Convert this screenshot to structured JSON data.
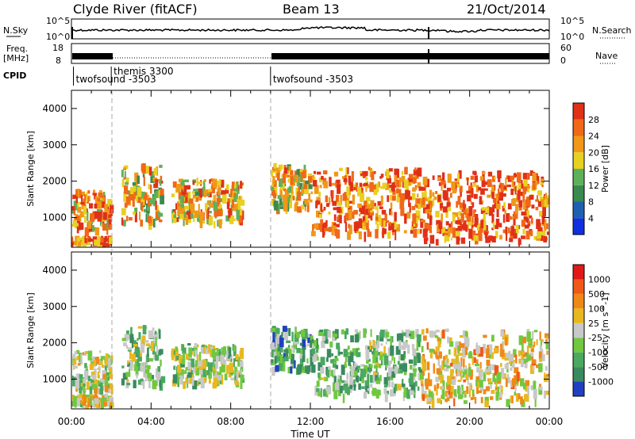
{
  "header": {
    "station": "Clyde River (fitACF)",
    "beam": "Beam 13",
    "date": "21/Oct/2014"
  },
  "left_labels": {
    "nsky": "N.Sky",
    "nsky_ticks": [
      "10^5",
      "10^0"
    ],
    "freq_line1": "Freq.",
    "freq_line2": "[MHz]",
    "freq_ticks": [
      "18",
      "8"
    ],
    "cpid": "CPID"
  },
  "right_labels": {
    "nsearch_ticks": [
      "10^5",
      "10^0"
    ],
    "nsearch": "N.Search",
    "nave_ticks": [
      "60",
      "0"
    ],
    "nave": "Nave"
  },
  "cpid_segments": [
    {
      "label": "twofsound -3503",
      "start_hour": 0.1,
      "level": "low"
    },
    {
      "label": "themis 3300",
      "start_hour": 2.0,
      "level": "high"
    },
    {
      "label": "twofsound -3503",
      "start_hour": 10.0,
      "level": "low"
    }
  ],
  "axes": {
    "xlabel": "Time UT",
    "x_ticks": [
      "00:00",
      "04:00",
      "08:00",
      "12:00",
      "16:00",
      "20:00",
      "00:00"
    ],
    "ylabel": "Slant Range [km]",
    "y_ticks": [
      "1000",
      "2000",
      "3000",
      "4000"
    ]
  },
  "power_colorbar": {
    "label": "Power [dB]",
    "ticks": [
      "4",
      "8",
      "12",
      "16",
      "20",
      "24",
      "28"
    ],
    "colors": [
      "#1030e0",
      "#2060b0",
      "#3a8a50",
      "#5fb05a",
      "#e8d020",
      "#f09818",
      "#f06818",
      "#e03018"
    ]
  },
  "velocity_colorbar": {
    "label": "Velocity [m s^-1]",
    "ticks": [
      "1000",
      "500",
      "100",
      "25",
      "-25",
      "-100",
      "-500",
      "-1000"
    ],
    "colors": [
      "#2040c0",
      "#3a8a60",
      "#4aa860",
      "#70c840",
      "#c8c8c8",
      "#e8b820",
      "#f08818",
      "#f05818",
      "#e01818"
    ]
  },
  "chart_data": [
    {
      "type": "heatmap",
      "title": "",
      "xlabel": "Time UT",
      "ylabel": "Slant Range [km]",
      "xlim": [
        0,
        24
      ],
      "ylim": [
        180,
        4500
      ],
      "colorbar_label": "Power [dB]",
      "colorbar_range": [
        0,
        30
      ],
      "blobs": [
        {
          "t0": 0.0,
          "t1": 2.0,
          "r0": 700,
          "r1": 1800,
          "value": 22
        },
        {
          "t0": 0.0,
          "t1": 2.0,
          "r0": 180,
          "r1": 500,
          "value": 24
        },
        {
          "t0": 2.5,
          "t1": 4.5,
          "r0": 900,
          "r1": 2500,
          "value": 18
        },
        {
          "t0": 5.0,
          "t1": 8.5,
          "r0": 900,
          "r1": 2100,
          "value": 20
        },
        {
          "t0": 10.0,
          "t1": 12.0,
          "r0": 1300,
          "r1": 2500,
          "value": 18
        },
        {
          "t0": 12.0,
          "t1": 17.5,
          "r0": 600,
          "r1": 2400,
          "value": 24
        },
        {
          "t0": 17.5,
          "t1": 24.0,
          "r0": 400,
          "r1": 2300,
          "value": 26
        }
      ]
    },
    {
      "type": "heatmap",
      "title": "",
      "xlabel": "Time UT",
      "ylabel": "Slant Range [km]",
      "xlim": [
        0,
        24
      ],
      "ylim": [
        180,
        4500
      ],
      "colorbar_label": "Velocity [m s^-1]",
      "colorbar_range": [
        -1000,
        1000
      ],
      "blobs": [
        {
          "t0": 0.0,
          "t1": 2.0,
          "r0": 700,
          "r1": 1800,
          "value": -60
        },
        {
          "t0": 0.0,
          "t1": 2.0,
          "r0": 180,
          "r1": 600,
          "value": 100
        },
        {
          "t0": 2.5,
          "t1": 4.5,
          "r0": 900,
          "r1": 2500,
          "value": -200
        },
        {
          "t0": 5.0,
          "t1": 8.5,
          "r0": 900,
          "r1": 2000,
          "value": -150
        },
        {
          "t0": 10.0,
          "t1": 12.0,
          "r0": 1300,
          "r1": 2500,
          "value": -400
        },
        {
          "t0": 12.0,
          "t1": 17.5,
          "r0": 600,
          "r1": 2400,
          "value": -300
        },
        {
          "t0": 17.5,
          "t1": 24.0,
          "r0": 400,
          "r1": 2400,
          "value": 150
        }
      ]
    }
  ]
}
